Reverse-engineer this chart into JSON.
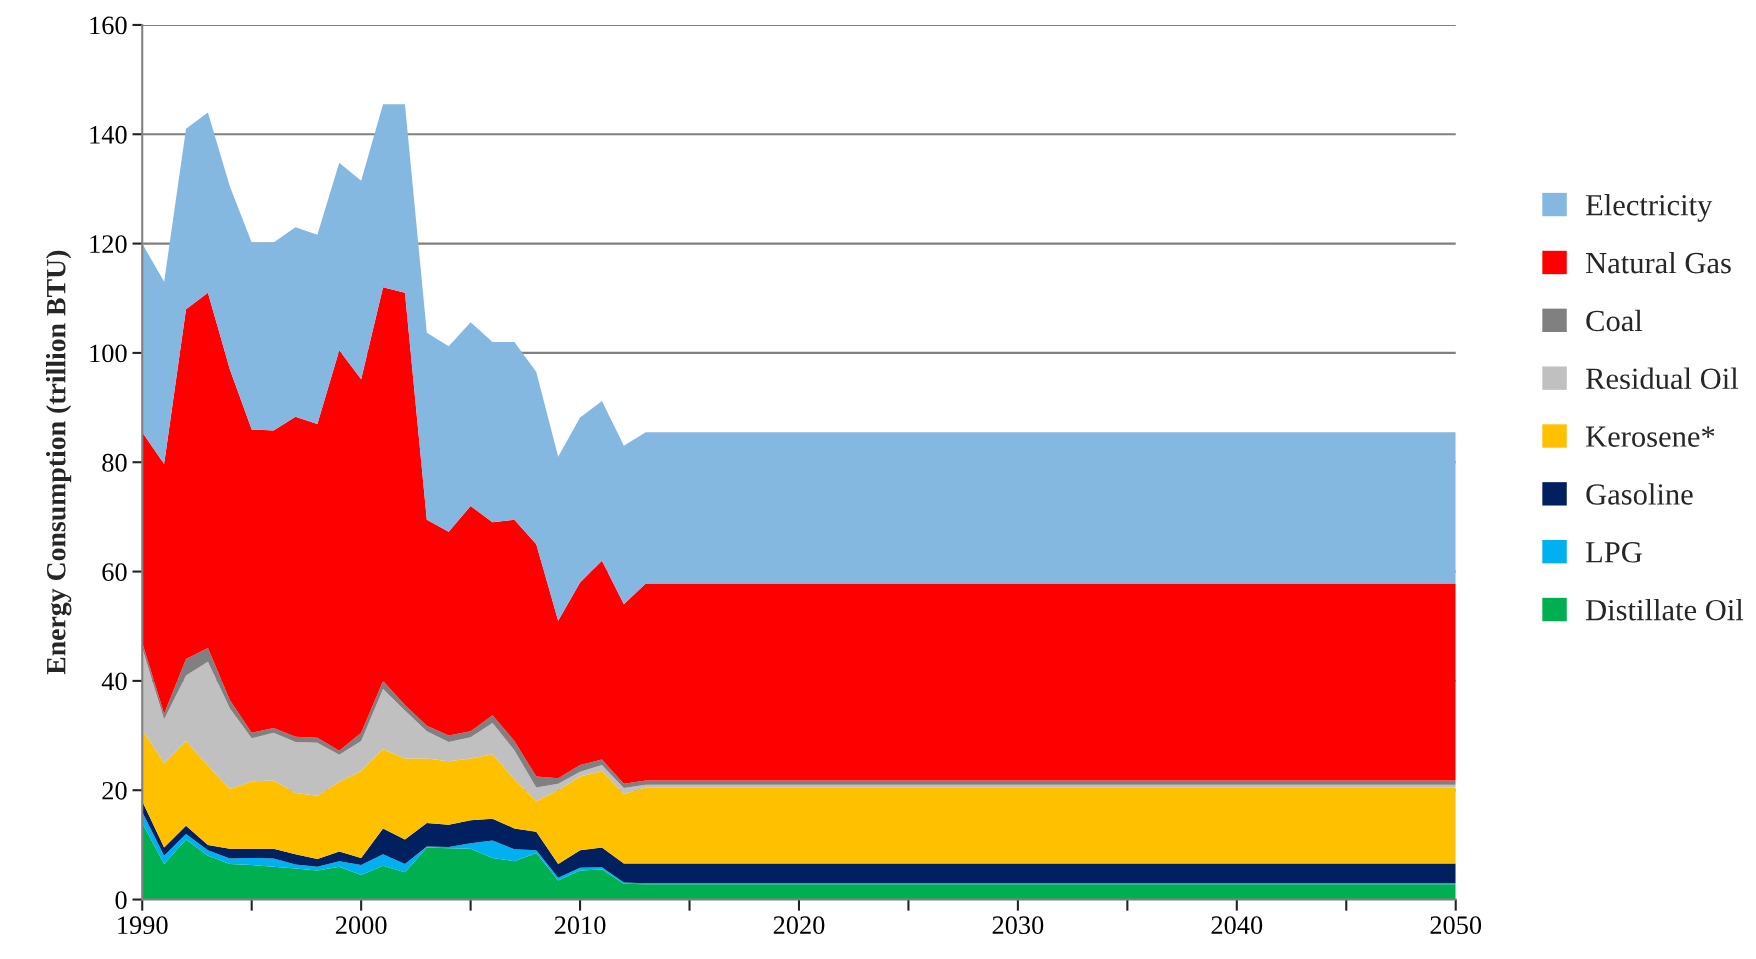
{
  "chart_data": {
    "type": "area",
    "stacked": true,
    "ylabel": "Energy Consumption (trillion BTU)",
    "x": [
      1990,
      1991,
      1992,
      1993,
      1994,
      1995,
      1996,
      1997,
      1998,
      1999,
      2000,
      2001,
      2002,
      2003,
      2004,
      2005,
      2006,
      2007,
      2008,
      2009,
      2010,
      2011,
      2012,
      2013,
      2050
    ],
    "series": [
      {
        "name": "Distillate Oil",
        "color": "#00b050",
        "values": [
          14,
          6.5,
          11,
          8,
          6.5,
          6.3,
          6,
          5.7,
          5.3,
          6,
          4.5,
          6.2,
          5,
          9.5,
          9.4,
          9.3,
          7.6,
          7,
          8.5,
          3.5,
          5.3,
          5.5,
          2.9,
          2.8,
          2.8
        ]
      },
      {
        "name": "LPG",
        "color": "#00b0f0",
        "values": [
          2,
          1.5,
          1,
          1,
          1,
          1.3,
          1.5,
          0.7,
          0.7,
          1,
          1.8,
          2.1,
          1.5,
          0.2,
          0.2,
          1,
          3.2,
          2.2,
          0.5,
          0.5,
          0.5,
          0.4,
          0.2,
          0.2,
          0.2
        ]
      },
      {
        "name": "Gasoline",
        "color": "#002060",
        "values": [
          2,
          1.5,
          1.5,
          1,
          1.8,
          1.7,
          1.8,
          1.9,
          1.4,
          1.8,
          1.3,
          4.7,
          4.5,
          4.3,
          4.1,
          4.2,
          4,
          3.8,
          3.4,
          2.5,
          3.2,
          3.6,
          3.5,
          3.6,
          3.6
        ]
      },
      {
        "name": "Kerosene*",
        "color": "#ffc000",
        "values": [
          13,
          15.5,
          15.5,
          14.5,
          10.9,
          12.3,
          12.5,
          11.2,
          11.6,
          12.7,
          15.9,
          14.5,
          14.8,
          11.8,
          11.6,
          11.3,
          11.8,
          9,
          5.6,
          13.5,
          13.5,
          14,
          12.7,
          13.9,
          13.9
        ]
      },
      {
        "name": "Residual Oil",
        "color": "#c0c0c0",
        "values": [
          15,
          8,
          12,
          19,
          14.8,
          7.9,
          8.7,
          9.3,
          9.7,
          5,
          5.5,
          11,
          8.8,
          5,
          3.5,
          3.9,
          5.7,
          5.3,
          2.5,
          1.2,
          0.9,
          1.1,
          1.1,
          0.5,
          0.5
        ]
      },
      {
        "name": "Coal",
        "color": "#808080",
        "values": [
          1,
          1,
          3,
          2.5,
          1.5,
          1,
          0.9,
          1,
          0.9,
          0.7,
          1.5,
          1.5,
          1,
          1,
          1.2,
          1.1,
          1.4,
          1.7,
          2,
          1,
          1.2,
          1,
          0.8,
          0.8,
          0.8
        ]
      },
      {
        "name": "Natural Gas",
        "color": "#ff0000",
        "values": [
          38.5,
          45.7,
          64,
          65,
          60.5,
          55.5,
          54.4,
          58.5,
          57.4,
          73.3,
          64.7,
          72,
          75.4,
          37.7,
          37.3,
          41.2,
          35.3,
          40.5,
          42.5,
          28.8,
          33.4,
          36.4,
          32.8,
          36,
          36
        ]
      },
      {
        "name": "Electricity",
        "color": "#85b8e0",
        "values": [
          34.5,
          33.3,
          33,
          33,
          33.5,
          34.2,
          34.4,
          34.7,
          34.6,
          34.3,
          36.3,
          33.5,
          34.5,
          34.2,
          33.9,
          33.6,
          33,
          32.5,
          31.5,
          30,
          30.2,
          29.2,
          29,
          27.7,
          27.7
        ]
      }
    ],
    "xlim": [
      1990,
      2050
    ],
    "xticks": [
      1990,
      {
        "value": 1995,
        "label": null
      },
      2000,
      {
        "value": 2005,
        "label": null
      },
      2010,
      {
        "value": 2015,
        "label": null
      },
      2020,
      {
        "value": 2025,
        "label": null
      },
      2030,
      {
        "value": 2035,
        "label": null
      },
      2040,
      {
        "value": 2045,
        "label": null
      },
      2050
    ],
    "ylim": [
      0,
      160
    ],
    "yticks": [
      0,
      20,
      40,
      60,
      80,
      100,
      120,
      140,
      160
    ],
    "grid": "y",
    "legend": "right"
  }
}
